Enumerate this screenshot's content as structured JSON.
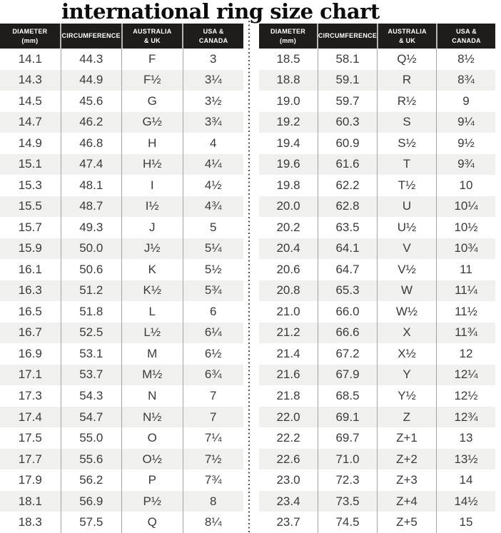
{
  "title": "international ring size chart",
  "columns_display": [
    "DIAMETER\n(mm)",
    "CIRCUMFERENCE",
    "AUSTRALIA\n& UK",
    "USA &\nCANADA"
  ],
  "chart_data": [
    {
      "type": "table",
      "panel": "left",
      "title": "international ring size chart",
      "columns": [
        "DIAMETER (mm)",
        "CIRCUMFERENCE",
        "AUSTRALIA & UK",
        "USA & CANADA"
      ],
      "rows": [
        [
          "14.1",
          "44.3",
          "F",
          "3"
        ],
        [
          "14.3",
          "44.9",
          "F½",
          "3¼"
        ],
        [
          "14.5",
          "45.6",
          "G",
          "3½"
        ],
        [
          "14.7",
          "46.2",
          "G½",
          "3¾"
        ],
        [
          "14.9",
          "46.8",
          "H",
          "4"
        ],
        [
          "15.1",
          "47.4",
          "H½",
          "4¼"
        ],
        [
          "15.3",
          "48.1",
          "I",
          "4½"
        ],
        [
          "15.5",
          "48.7",
          "I½",
          "4¾"
        ],
        [
          "15.7",
          "49.3",
          "J",
          "5"
        ],
        [
          "15.9",
          "50.0",
          "J½",
          "5¼"
        ],
        [
          "16.1",
          "50.6",
          "K",
          "5½"
        ],
        [
          "16.3",
          "51.2",
          "K½",
          "5¾"
        ],
        [
          "16.5",
          "51.8",
          "L",
          "6"
        ],
        [
          "16.7",
          "52.5",
          "L½",
          "6¼"
        ],
        [
          "16.9",
          "53.1",
          "M",
          "6½"
        ],
        [
          "17.1",
          "53.7",
          "M½",
          "6¾"
        ],
        [
          "17.3",
          "54.3",
          "N",
          "7"
        ],
        [
          "17.4",
          "54.7",
          "N½",
          "7"
        ],
        [
          "17.5",
          "55.0",
          "O",
          "7¼"
        ],
        [
          "17.7",
          "55.6",
          "O½",
          "7½"
        ],
        [
          "17.9",
          "56.2",
          "P",
          "7¾"
        ],
        [
          "18.1",
          "56.9",
          "P½",
          "8"
        ],
        [
          "18.3",
          "57.5",
          "Q",
          "8¼"
        ]
      ]
    },
    {
      "type": "table",
      "panel": "right",
      "title": "international ring size chart",
      "columns": [
        "DIAMETER (mm)",
        "CIRCUMFERENCE",
        "AUSTRALIA & UK",
        "USA & CANADA"
      ],
      "rows": [
        [
          "18.5",
          "58.1",
          "Q½",
          "8½"
        ],
        [
          "18.8",
          "59.1",
          "R",
          "8¾"
        ],
        [
          "19.0",
          "59.7",
          "R½",
          "9"
        ],
        [
          "19.2",
          "60.3",
          "S",
          "9¼"
        ],
        [
          "19.4",
          "60.9",
          "S½",
          "9½"
        ],
        [
          "19.6",
          "61.6",
          "T",
          "9¾"
        ],
        [
          "19.8",
          "62.2",
          "T½",
          "10"
        ],
        [
          "20.0",
          "62.8",
          "U",
          "10¼"
        ],
        [
          "20.2",
          "63.5",
          "U½",
          "10½"
        ],
        [
          "20.4",
          "64.1",
          "V",
          "10¾"
        ],
        [
          "20.6",
          "64.7",
          "V½",
          "11"
        ],
        [
          "20.8",
          "65.3",
          "W",
          "11¼"
        ],
        [
          "21.0",
          "66.0",
          "W½",
          "11½"
        ],
        [
          "21.2",
          "66.6",
          "X",
          "11¾"
        ],
        [
          "21.4",
          "67.2",
          "X½",
          "12"
        ],
        [
          "21.6",
          "67.9",
          "Y",
          "12¼"
        ],
        [
          "21.8",
          "68.5",
          "Y½",
          "12½"
        ],
        [
          "22.0",
          "69.1",
          "Z",
          "12¾"
        ],
        [
          "22.2",
          "69.7",
          "Z+1",
          "13"
        ],
        [
          "22.6",
          "71.0",
          "Z+2",
          "13½"
        ],
        [
          "23.0",
          "72.3",
          "Z+3",
          "14"
        ],
        [
          "23.4",
          "73.5",
          "Z+4",
          "14½"
        ],
        [
          "23.7",
          "74.5",
          "Z+5",
          "15"
        ]
      ]
    }
  ],
  "colors": {
    "header_bg": "#1e1d1b",
    "header_text": "#ffffff",
    "row_stripe": "#f0f1ef",
    "body_text": "#3a3a3a",
    "column_separator": "#a5a5a5",
    "dotted_divider": "#4f4f4f"
  }
}
